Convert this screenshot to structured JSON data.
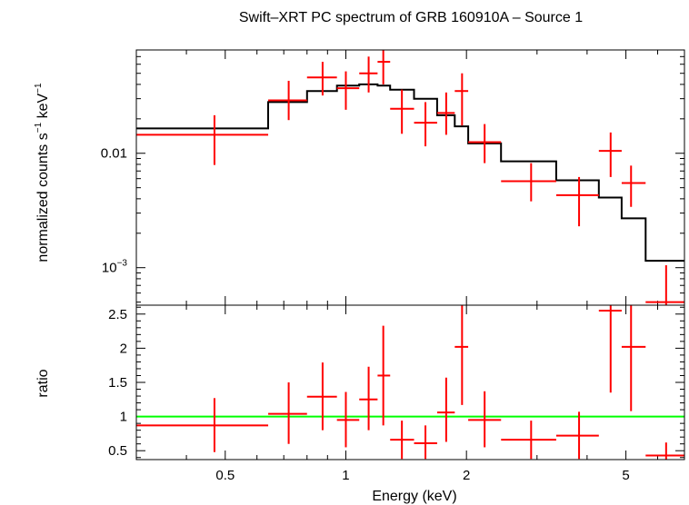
{
  "chart_data": [
    {
      "type": "scatter",
      "panel": "spectrum",
      "title": "Swift–XRT PC spectrum of GRB 160910A – Source 1",
      "ylabel_main": "normalized counts s",
      "ylabel_exp1": "−1",
      "ylabel_mid": " keV",
      "ylabel_exp2": "−1",
      "x_scale": "log",
      "y_scale": "log",
      "xlim": [
        0.3,
        7
      ],
      "ylim": [
        0.00047,
        0.08
      ],
      "y_ticks": [
        {
          "value": 0.01,
          "label": "0.01"
        },
        {
          "value": 0.001,
          "label": "10",
          "exp": "−3"
        }
      ],
      "series": [
        {
          "kind": "data",
          "color": "#ff0000",
          "points": [
            {
              "xlo": 0.3,
              "x": 0.47,
              "xhi": 0.64,
              "y": 0.0145,
              "ylo": 0.0079,
              "yhi": 0.0215
            },
            {
              "xlo": 0.64,
              "x": 0.72,
              "xhi": 0.8,
              "y": 0.029,
              "ylo": 0.0195,
              "yhi": 0.043
            },
            {
              "xlo": 0.8,
              "x": 0.875,
              "xhi": 0.95,
              "y": 0.046,
              "ylo": 0.032,
              "yhi": 0.063
            },
            {
              "xlo": 0.95,
              "x": 1.0,
              "xhi": 1.08,
              "y": 0.037,
              "ylo": 0.024,
              "yhi": 0.052
            },
            {
              "xlo": 1.08,
              "x": 1.14,
              "xhi": 1.2,
              "y": 0.05,
              "ylo": 0.034,
              "yhi": 0.07
            },
            {
              "xlo": 1.2,
              "x": 1.24,
              "xhi": 1.29,
              "y": 0.063,
              "ylo": 0.04,
              "yhi": 0.08
            },
            {
              "xlo": 1.29,
              "x": 1.38,
              "xhi": 1.48,
              "y": 0.0245,
              "ylo": 0.0148,
              "yhi": 0.036
            },
            {
              "xlo": 1.48,
              "x": 1.58,
              "xhi": 1.69,
              "y": 0.0185,
              "ylo": 0.0115,
              "yhi": 0.028
            },
            {
              "xlo": 1.69,
              "x": 1.78,
              "xhi": 1.87,
              "y": 0.0225,
              "ylo": 0.0145,
              "yhi": 0.034
            },
            {
              "xlo": 1.87,
              "x": 1.95,
              "xhi": 2.02,
              "y": 0.035,
              "ylo": 0.0175,
              "yhi": 0.05
            },
            {
              "xlo": 2.02,
              "x": 2.22,
              "xhi": 2.44,
              "y": 0.0125,
              "ylo": 0.0082,
              "yhi": 0.018
            },
            {
              "xlo": 2.44,
              "x": 2.9,
              "xhi": 3.35,
              "y": 0.0057,
              "ylo": 0.0038,
              "yhi": 0.0082
            },
            {
              "xlo": 3.35,
              "x": 3.82,
              "xhi": 4.28,
              "y": 0.0043,
              "ylo": 0.0023,
              "yhi": 0.0062
            },
            {
              "xlo": 4.28,
              "x": 4.58,
              "xhi": 4.88,
              "y": 0.0105,
              "ylo": 0.0062,
              "yhi": 0.0152
            },
            {
              "xlo": 4.88,
              "x": 5.15,
              "xhi": 5.6,
              "y": 0.0055,
              "ylo": 0.0034,
              "yhi": 0.0078
            },
            {
              "xlo": 5.6,
              "x": 6.3,
              "xhi": 7.0,
              "y": 0.0005,
              "ylo": 0.00047,
              "yhi": 0.00105
            }
          ]
        },
        {
          "kind": "model",
          "color": "#000000",
          "steps": [
            {
              "xlo": 0.3,
              "xhi": 0.64,
              "y": 0.0165
            },
            {
              "xlo": 0.64,
              "xhi": 0.8,
              "y": 0.028
            },
            {
              "xlo": 0.8,
              "xhi": 0.95,
              "y": 0.035
            },
            {
              "xlo": 0.95,
              "xhi": 1.08,
              "y": 0.039
            },
            {
              "xlo": 1.08,
              "xhi": 1.2,
              "y": 0.04
            },
            {
              "xlo": 1.2,
              "xhi": 1.29,
              "y": 0.039
            },
            {
              "xlo": 1.29,
              "xhi": 1.48,
              "y": 0.036
            },
            {
              "xlo": 1.48,
              "xhi": 1.69,
              "y": 0.03
            },
            {
              "xlo": 1.69,
              "xhi": 1.87,
              "y": 0.0215
            },
            {
              "xlo": 1.87,
              "xhi": 2.02,
              "y": 0.0172
            },
            {
              "xlo": 2.02,
              "xhi": 2.44,
              "y": 0.0122
            },
            {
              "xlo": 2.44,
              "xhi": 3.35,
              "y": 0.0085
            },
            {
              "xlo": 3.35,
              "xhi": 4.28,
              "y": 0.0058
            },
            {
              "xlo": 4.28,
              "xhi": 4.88,
              "y": 0.0041
            },
            {
              "xlo": 4.88,
              "xhi": 5.6,
              "y": 0.0027
            },
            {
              "xlo": 5.6,
              "xhi": 7.0,
              "y": 0.00115
            }
          ]
        }
      ]
    },
    {
      "type": "scatter",
      "panel": "ratio",
      "ylabel": "ratio",
      "xlabel": "Energy (keV)",
      "x_scale": "log",
      "xlim": [
        0.3,
        7
      ],
      "ylim": [
        0.37,
        2.63
      ],
      "x_ticks": [
        {
          "value": 0.5,
          "label": "0.5"
        },
        {
          "value": 1,
          "label": "1"
        },
        {
          "value": 2,
          "label": "2"
        },
        {
          "value": 5,
          "label": "5"
        }
      ],
      "y_ticks": [
        {
          "value": 0.5,
          "label": "0.5"
        },
        {
          "value": 1,
          "label": "1"
        },
        {
          "value": 1.5,
          "label": "1.5"
        },
        {
          "value": 2,
          "label": "2"
        },
        {
          "value": 2.5,
          "label": "2.5"
        }
      ],
      "reference_line": {
        "y": 1,
        "color": "#00ff00"
      },
      "series": [
        {
          "kind": "data",
          "color": "#ff0000",
          "points": [
            {
              "xlo": 0.3,
              "x": 0.47,
              "xhi": 0.64,
              "y": 0.87,
              "ylo": 0.48,
              "yhi": 1.27
            },
            {
              "xlo": 0.64,
              "x": 0.72,
              "xhi": 0.8,
              "y": 1.04,
              "ylo": 0.6,
              "yhi": 1.5
            },
            {
              "xlo": 0.8,
              "x": 0.875,
              "xhi": 0.95,
              "y": 1.29,
              "ylo": 0.8,
              "yhi": 1.79
            },
            {
              "xlo": 0.95,
              "x": 1.0,
              "xhi": 1.08,
              "y": 0.95,
              "ylo": 0.55,
              "yhi": 1.36
            },
            {
              "xlo": 1.08,
              "x": 1.14,
              "xhi": 1.2,
              "y": 1.25,
              "ylo": 0.8,
              "yhi": 1.73
            },
            {
              "xlo": 1.2,
              "x": 1.24,
              "xhi": 1.29,
              "y": 1.6,
              "ylo": 0.87,
              "yhi": 2.33
            },
            {
              "xlo": 1.29,
              "x": 1.38,
              "xhi": 1.48,
              "y": 0.66,
              "ylo": 0.38,
              "yhi": 0.94
            },
            {
              "xlo": 1.48,
              "x": 1.58,
              "xhi": 1.69,
              "y": 0.61,
              "ylo": 0.38,
              "yhi": 0.87
            },
            {
              "xlo": 1.69,
              "x": 1.78,
              "xhi": 1.87,
              "y": 1.06,
              "ylo": 0.63,
              "yhi": 1.57
            },
            {
              "xlo": 1.87,
              "x": 1.95,
              "xhi": 2.02,
              "y": 2.02,
              "ylo": 1.17,
              "yhi": 2.63
            },
            {
              "xlo": 2.02,
              "x": 2.22,
              "xhi": 2.44,
              "y": 0.95,
              "ylo": 0.55,
              "yhi": 1.37
            },
            {
              "xlo": 2.44,
              "x": 2.9,
              "xhi": 3.35,
              "y": 0.66,
              "ylo": 0.38,
              "yhi": 0.94
            },
            {
              "xlo": 3.35,
              "x": 3.82,
              "xhi": 4.28,
              "y": 0.72,
              "ylo": 0.38,
              "yhi": 1.07
            },
            {
              "xlo": 4.28,
              "x": 4.58,
              "xhi": 4.88,
              "y": 2.55,
              "ylo": 1.35,
              "yhi": 2.63
            },
            {
              "xlo": 4.88,
              "x": 5.15,
              "xhi": 5.6,
              "y": 2.02,
              "ylo": 1.08,
              "yhi": 2.63
            },
            {
              "xlo": 5.6,
              "x": 6.3,
              "xhi": 7.0,
              "y": 0.43,
              "ylo": 0.37,
              "yhi": 0.62
            }
          ]
        }
      ]
    }
  ]
}
